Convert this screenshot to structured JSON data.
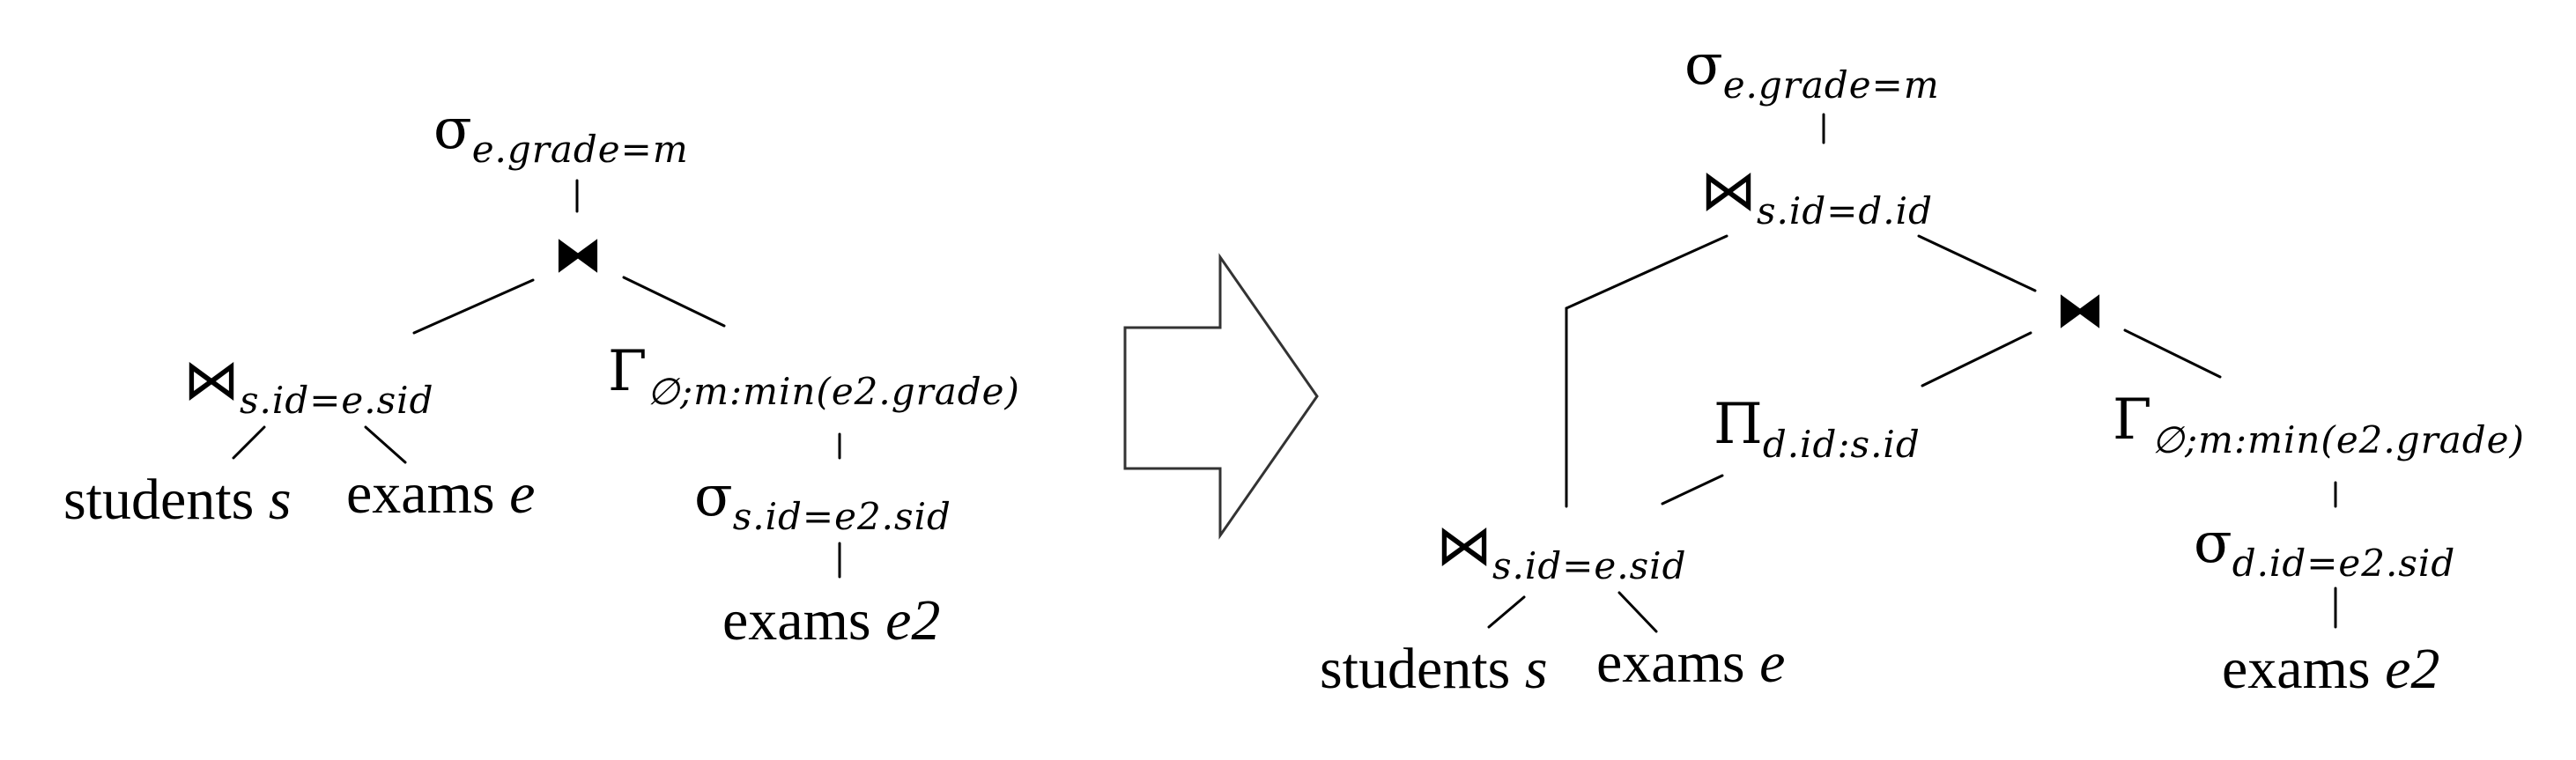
{
  "diagram": {
    "left_tree": {
      "select_grade": {
        "op": "σ",
        "sub": "e.grade=m"
      },
      "join": {
        "symbol": "⧓"
      },
      "join_students_exams": {
        "op": "⋈",
        "sub": "s.id=e.sid"
      },
      "aggregate": {
        "op": "Γ",
        "sub": "∅;m:min(e2.grade)"
      },
      "students": {
        "name": "students",
        "var": "s"
      },
      "exams": {
        "name": "exams",
        "var": "e"
      },
      "select_sid": {
        "op": "σ",
        "sub": "s.id=e2.sid"
      },
      "exams2": {
        "name": "exams",
        "var": "e2"
      }
    },
    "arrow": {
      "shape": "block-arrow-right",
      "stroke": "#333333"
    },
    "right_tree": {
      "select_grade": {
        "op": "σ",
        "sub": "e.grade=m"
      },
      "join_sid_did": {
        "op": "⋈",
        "sub": "s.id=d.id"
      },
      "join": {
        "symbol": "⧓"
      },
      "project": {
        "op": "Π",
        "sub": "d.id:s.id"
      },
      "aggregate": {
        "op": "Γ",
        "sub": "∅;m:min(e2.grade)"
      },
      "join_students_exams": {
        "op": "⋈",
        "sub": "s.id=e.sid"
      },
      "select_did": {
        "op": "σ",
        "sub": "d.id=e2.sid"
      },
      "students": {
        "name": "students",
        "var": "s"
      },
      "exams": {
        "name": "exams",
        "var": "e"
      },
      "exams2": {
        "name": "exams",
        "var": "e2"
      }
    }
  }
}
